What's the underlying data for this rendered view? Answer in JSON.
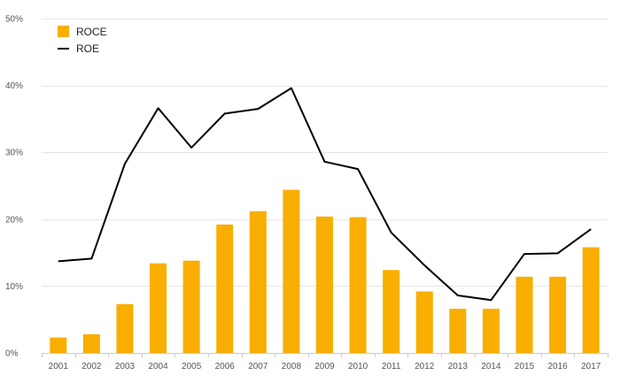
{
  "chart_data": {
    "type": "bar",
    "categories": [
      "2001",
      "2002",
      "2003",
      "2004",
      "2005",
      "2006",
      "2007",
      "2008",
      "2009",
      "2010",
      "2011",
      "2012",
      "2013",
      "2014",
      "2015",
      "2016",
      "2017"
    ],
    "series": [
      {
        "name": "ROCE",
        "type": "bar",
        "color": "#F9AE00",
        "values": [
          2.3,
          2.8,
          7.3,
          13.4,
          13.8,
          19.2,
          21.2,
          24.4,
          20.4,
          20.3,
          12.4,
          9.2,
          6.6,
          6.6,
          11.4,
          11.4,
          15.8
        ]
      },
      {
        "name": "ROE",
        "type": "line",
        "color": "#000000",
        "values": [
          13.7,
          14.1,
          28.3,
          36.6,
          30.7,
          35.8,
          36.5,
          39.6,
          28.6,
          27.5,
          18.0,
          13.1,
          8.6,
          7.9,
          14.8,
          14.9,
          18.5
        ]
      }
    ],
    "ylim": [
      0,
      50
    ],
    "yticks": [
      0,
      10,
      20,
      30,
      40,
      50
    ],
    "ytick_labels": [
      "0%",
      "10%",
      "20%",
      "30%",
      "40%",
      "50%"
    ],
    "legend_position": "top-left",
    "grid": true,
    "title": "",
    "xlabel": "",
    "ylabel": ""
  }
}
